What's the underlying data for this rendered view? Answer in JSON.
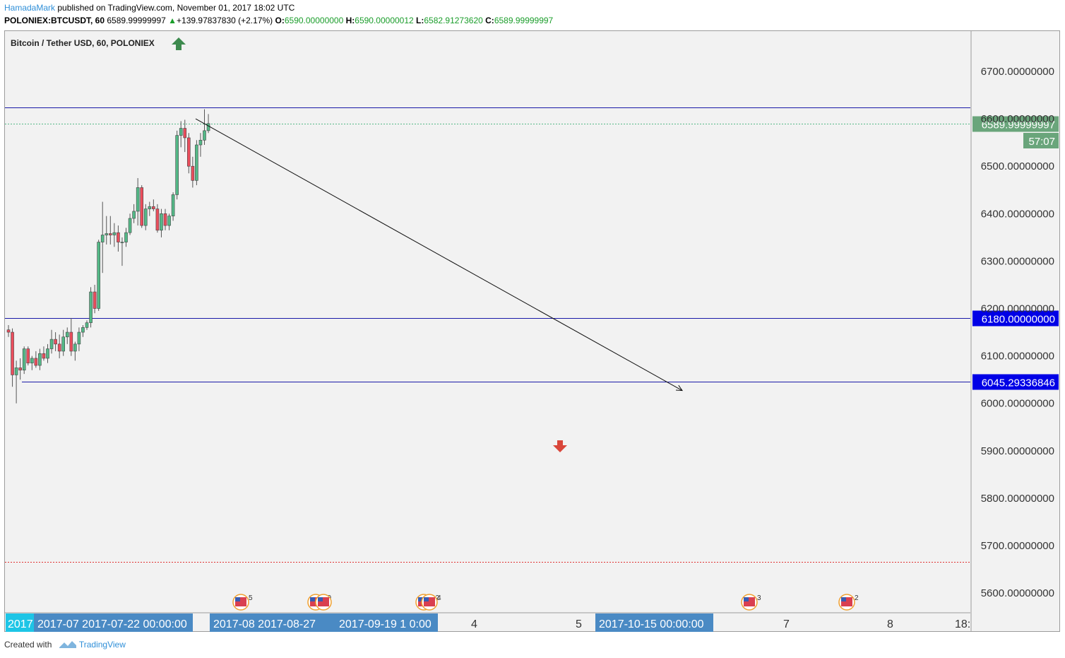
{
  "header": {
    "author": "HamadaMark",
    "published_text": " published on TradingView.com, November 01, 2017 18:02 UTC",
    "symbol": "POLONIEX:BTCUSDT, 60",
    "last": "6589.99999997",
    "change": "+139.97837830 (+2.17%)",
    "open_label": "O:",
    "open": "6590.00000000",
    "high_label": "H:",
    "high": "6590.00000012",
    "low_label": "L:",
    "low": "6582.91273620",
    "close_label": "C:",
    "close": "6589.99999997"
  },
  "chart_title": "Bitcoin / Tether USD, 60, POLONIEX",
  "footer": {
    "created": "Created with",
    "brand": "TradingView"
  },
  "colors": {
    "up": "#53b987",
    "down": "#eb4d5c",
    "hline": "#1a1aa8",
    "label_blue": "#0000e6",
    "price_green": "#6aa57b",
    "time_label": "#4a8ac4"
  },
  "chart_data": {
    "type": "candlestick",
    "title": "Bitcoin / Tether USD, 60, POLONIEX",
    "ylim": [
      5555,
      6760
    ],
    "y_ticks": [
      "6700.00000000",
      "6600.00000000",
      "6500.00000000",
      "6400.00000000",
      "6300.00000000",
      "6200.00000000",
      "6100.00000000",
      "6000.00000000",
      "5900.00000000",
      "5800.00000000",
      "5700.00000000",
      "5600.00000000"
    ],
    "y_tick_values": [
      6700,
      6600,
      6500,
      6400,
      6300,
      6200,
      6100,
      6000,
      5900,
      5800,
      5700,
      5600
    ],
    "x_labels": [
      "2017",
      "2017-07",
      "2017-07-22 00:00:00",
      "2017-08",
      "2017-08-27",
      "2017-09-19 1",
      "0:00",
      "4",
      "5",
      "2017-10-15 00:00:00",
      "7",
      "8",
      "18:"
    ],
    "horizontal_lines": [
      {
        "value": 6624,
        "color": "#1a1aa8",
        "style": "solid",
        "label": ""
      },
      {
        "value": 6180,
        "color": "#1a1aa8",
        "style": "solid",
        "label": "6180.00000000"
      },
      {
        "value": 6045.29336846,
        "color": "#1a1aa8",
        "style": "solid",
        "label": "6045.29336846"
      },
      {
        "value": 6589.99999997,
        "color": "#53b987",
        "style": "dotted",
        "label": "6589.99999997"
      },
      {
        "value": 5665,
        "color": "#e03030",
        "style": "dotted",
        "label": ""
      }
    ],
    "countdown": "57:07",
    "trend_arrow": {
      "from": [
        0,
        6600
      ],
      "to": [
        96,
        6027
      ]
    },
    "candles": [
      {
        "o": 6155,
        "h": 6165,
        "l": 6140,
        "c": 6150
      },
      {
        "o": 6150,
        "h": 6158,
        "l": 6035,
        "c": 6060
      },
      {
        "o": 6060,
        "h": 6090,
        "l": 6000,
        "c": 6075
      },
      {
        "o": 6075,
        "h": 6095,
        "l": 6050,
        "c": 6070
      },
      {
        "o": 6070,
        "h": 6120,
        "l": 6062,
        "c": 6115
      },
      {
        "o": 6115,
        "h": 6120,
        "l": 6080,
        "c": 6085
      },
      {
        "o": 6085,
        "h": 6100,
        "l": 6070,
        "c": 6095
      },
      {
        "o": 6095,
        "h": 6110,
        "l": 6075,
        "c": 6080
      },
      {
        "o": 6080,
        "h": 6115,
        "l": 6070,
        "c": 6105
      },
      {
        "o": 6105,
        "h": 6120,
        "l": 6090,
        "c": 6095
      },
      {
        "o": 6095,
        "h": 6125,
        "l": 6085,
        "c": 6115
      },
      {
        "o": 6115,
        "h": 6155,
        "l": 6105,
        "c": 6135
      },
      {
        "o": 6135,
        "h": 6150,
        "l": 6110,
        "c": 6125
      },
      {
        "o": 6125,
        "h": 6145,
        "l": 6095,
        "c": 6110
      },
      {
        "o": 6110,
        "h": 6155,
        "l": 6100,
        "c": 6140
      },
      {
        "o": 6140,
        "h": 6160,
        "l": 6125,
        "c": 6150
      },
      {
        "o": 6150,
        "h": 6180,
        "l": 6100,
        "c": 6110
      },
      {
        "o": 6110,
        "h": 6130,
        "l": 6090,
        "c": 6125
      },
      {
        "o": 6125,
        "h": 6160,
        "l": 6110,
        "c": 6150
      },
      {
        "o": 6150,
        "h": 6165,
        "l": 6140,
        "c": 6160
      },
      {
        "o": 6160,
        "h": 6175,
        "l": 6155,
        "c": 6170
      },
      {
        "o": 6170,
        "h": 6245,
        "l": 6160,
        "c": 6235
      },
      {
        "o": 6235,
        "h": 6250,
        "l": 6190,
        "c": 6200
      },
      {
        "o": 6200,
        "h": 6345,
        "l": 6195,
        "c": 6340
      },
      {
        "o": 6340,
        "h": 6425,
        "l": 6275,
        "c": 6355
      },
      {
        "o": 6355,
        "h": 6395,
        "l": 6335,
        "c": 6358
      },
      {
        "o": 6358,
        "h": 6395,
        "l": 6335,
        "c": 6355
      },
      {
        "o": 6355,
        "h": 6380,
        "l": 6330,
        "c": 6360
      },
      {
        "o": 6360,
        "h": 6375,
        "l": 6320,
        "c": 6340
      },
      {
        "o": 6340,
        "h": 6350,
        "l": 6290,
        "c": 6340
      },
      {
        "o": 6340,
        "h": 6370,
        "l": 6330,
        "c": 6360
      },
      {
        "o": 6360,
        "h": 6400,
        "l": 6355,
        "c": 6390
      },
      {
        "o": 6390,
        "h": 6420,
        "l": 6380,
        "c": 6405
      },
      {
        "o": 6405,
        "h": 6475,
        "l": 6375,
        "c": 6455
      },
      {
        "o": 6455,
        "h": 6460,
        "l": 6370,
        "c": 6375
      },
      {
        "o": 6375,
        "h": 6420,
        "l": 6365,
        "c": 6410
      },
      {
        "o": 6410,
        "h": 6425,
        "l": 6395,
        "c": 6415
      },
      {
        "o": 6415,
        "h": 6430,
        "l": 6405,
        "c": 6410
      },
      {
        "o": 6410,
        "h": 6420,
        "l": 6360,
        "c": 6365
      },
      {
        "o": 6365,
        "h": 6410,
        "l": 6350,
        "c": 6400
      },
      {
        "o": 6400,
        "h": 6410,
        "l": 6365,
        "c": 6375
      },
      {
        "o": 6375,
        "h": 6400,
        "l": 6365,
        "c": 6395
      },
      {
        "o": 6395,
        "h": 6445,
        "l": 6385,
        "c": 6440
      },
      {
        "o": 6440,
        "h": 6575,
        "l": 6430,
        "c": 6565
      },
      {
        "o": 6565,
        "h": 6595,
        "l": 6540,
        "c": 6580
      },
      {
        "o": 6580,
        "h": 6598,
        "l": 6530,
        "c": 6560
      },
      {
        "o": 6560,
        "h": 6570,
        "l": 6485,
        "c": 6500
      },
      {
        "o": 6500,
        "h": 6520,
        "l": 6455,
        "c": 6470
      },
      {
        "o": 6470,
        "h": 6555,
        "l": 6460,
        "c": 6545
      },
      {
        "o": 6545,
        "h": 6570,
        "l": 6520,
        "c": 6555
      },
      {
        "o": 6555,
        "h": 6620,
        "l": 6545,
        "c": 6575
      },
      {
        "o": 6575,
        "h": 6610,
        "l": 6570,
        "c": 6590
      }
    ]
  }
}
